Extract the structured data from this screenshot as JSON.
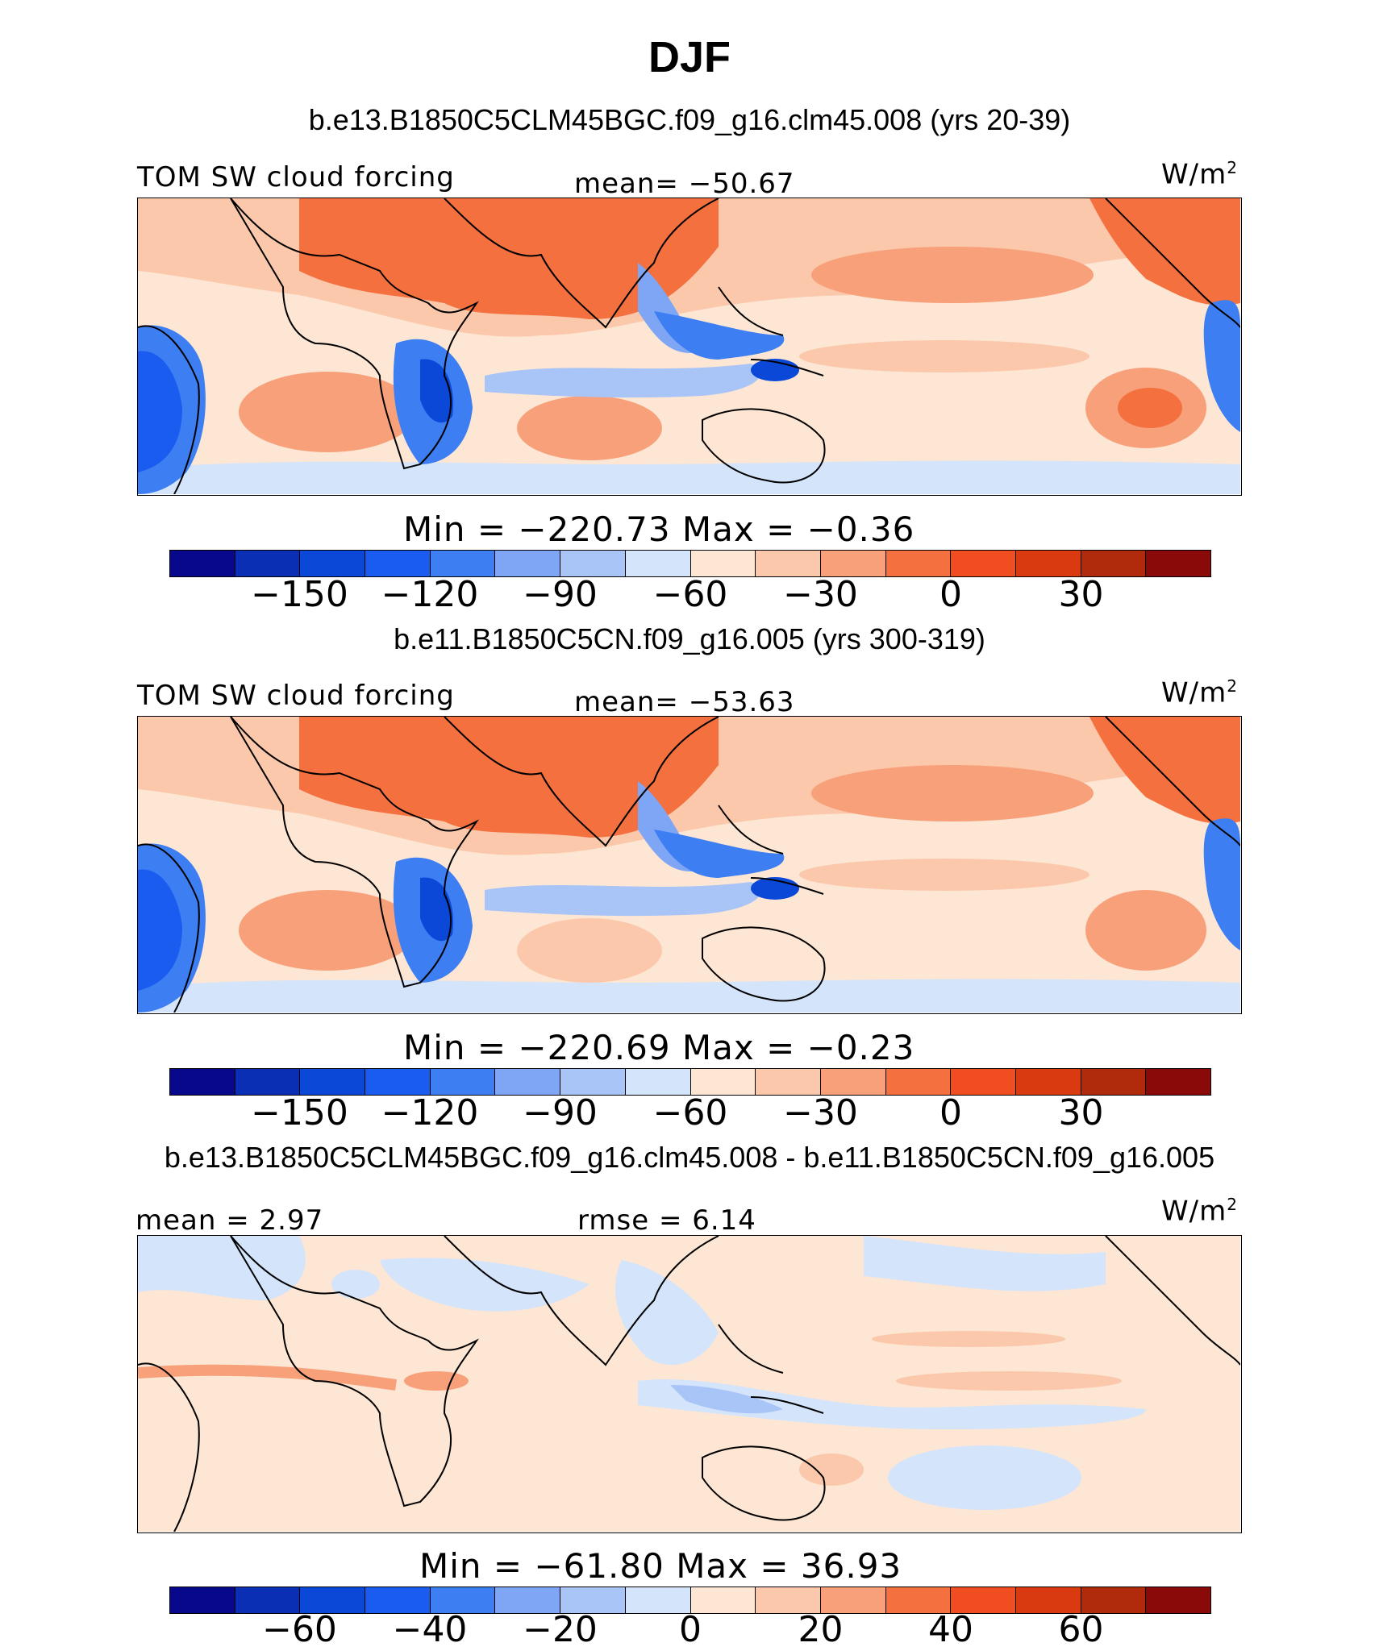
{
  "title": "DJF",
  "colors": [
    "#08088c",
    "#0a2fb5",
    "#0c48d8",
    "#1a5cf0",
    "#3d7ff2",
    "#7fa6f5",
    "#a9c4f7",
    "#d4e4fb",
    "#fde6d3",
    "#fbc8ab",
    "#f7a07a",
    "#f4703f",
    "#f04e20",
    "#d93a10",
    "#b02a0c",
    "#8a0a0a"
  ],
  "panels": [
    {
      "case": "b.e13.B1850C5CLM45BGC.f09_g16.clm45.008 (yrs 20-39)",
      "left_label": "TOM SW cloud forcing",
      "center_label": "mean= −50.67",
      "units": "W/m",
      "units_sup": "2",
      "minmax": "Min = −220.73 Max = −0.36",
      "ticks": [
        "−150",
        "−120",
        "−90",
        "−60",
        "−30",
        "0",
        "30"
      ]
    },
    {
      "case": "b.e11.B1850C5CN.f09_g16.005 (yrs 300-319)",
      "left_label": "TOM SW cloud forcing",
      "center_label": "mean= −53.63",
      "units": "W/m",
      "units_sup": "2",
      "minmax": "Min = −220.69 Max = −0.23",
      "ticks": [
        "−150",
        "−120",
        "−90",
        "−60",
        "−30",
        "0",
        "30"
      ]
    },
    {
      "case": "b.e13.B1850C5CLM45BGC.f09_g16.clm45.008 - b.e11.B1850C5CN.f09_g16.005",
      "left_label": "mean = 2.97",
      "center_label": "rmse = 6.14",
      "units": "W/m",
      "units_sup": "2",
      "minmax": "Min = −61.80 Max = 36.93",
      "ticks": [
        "−60",
        "−40",
        "−20",
        "0",
        "20",
        "40",
        "60"
      ]
    }
  ]
}
